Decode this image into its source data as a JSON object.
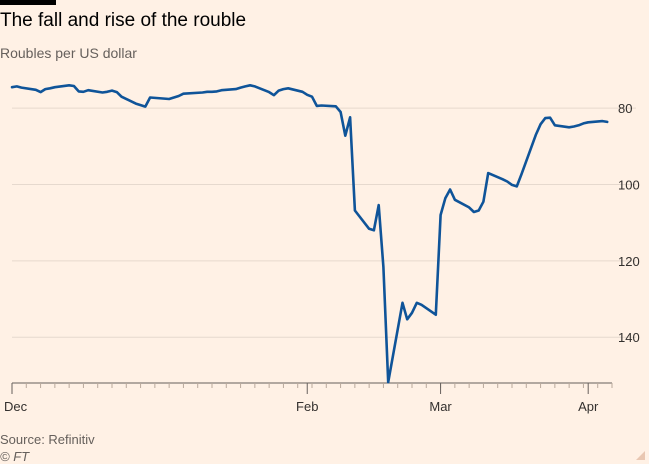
{
  "header": {
    "title": "The fall and rise of the rouble",
    "subtitle": "Roubles per US dollar"
  },
  "footer": {
    "source": "Source: Refinitiv",
    "copyright": "© FT"
  },
  "colors": {
    "background": "#fff1e5",
    "line": "#0f5499",
    "grid": "#e6d9ce",
    "axis": "#66605c",
    "text": "#33302e"
  },
  "chart_data": {
    "type": "line",
    "title": "The fall and rise of the rouble",
    "subtitle": "Roubles per US dollar",
    "xlabel": "",
    "ylabel": "",
    "y_inverted": true,
    "y_axis_side": "right",
    "ylim": [
      70,
      152
    ],
    "yticks": [
      80,
      100,
      120,
      140
    ],
    "xlim": [
      "2021-12-01",
      "2022-04-06"
    ],
    "xticks": [
      {
        "date": "2021-12-01",
        "label": "Dec"
      },
      {
        "date": "2022-02-01",
        "label": "Feb"
      },
      {
        "date": "2022-03-01",
        "label": "Mar"
      },
      {
        "date": "2022-04-01",
        "label": "Apr"
      }
    ],
    "grid": "horizontal",
    "series": [
      {
        "x": [
          "2021-12-01",
          "2021-12-02",
          "2021-12-03",
          "2021-12-06",
          "2021-12-07",
          "2021-12-08",
          "2021-12-09",
          "2021-12-10",
          "2021-12-13",
          "2021-12-14",
          "2021-12-15",
          "2021-12-16",
          "2021-12-17",
          "2021-12-20",
          "2021-12-21",
          "2021-12-22",
          "2021-12-23",
          "2021-12-24",
          "2021-12-27",
          "2021-12-28",
          "2021-12-29",
          "2021-12-30",
          "2022-01-03",
          "2022-01-05",
          "2022-01-06",
          "2022-01-10",
          "2022-01-11",
          "2022-01-12",
          "2022-01-13",
          "2022-01-14",
          "2022-01-17",
          "2022-01-18",
          "2022-01-19",
          "2022-01-20",
          "2022-01-21",
          "2022-01-24",
          "2022-01-25",
          "2022-01-26",
          "2022-01-27",
          "2022-01-28",
          "2022-01-31",
          "2022-02-01",
          "2022-02-02",
          "2022-02-03",
          "2022-02-04",
          "2022-02-07",
          "2022-02-08",
          "2022-02-09",
          "2022-02-10",
          "2022-02-11",
          "2022-02-14",
          "2022-02-15",
          "2022-02-16",
          "2022-02-17",
          "2022-02-18",
          "2022-02-21",
          "2022-02-22",
          "2022-02-23",
          "2022-02-24",
          "2022-02-25",
          "2022-02-28",
          "2022-03-01",
          "2022-03-02",
          "2022-03-03",
          "2022-03-04",
          "2022-03-07",
          "2022-03-08",
          "2022-03-09",
          "2022-03-10",
          "2022-03-11",
          "2022-03-14",
          "2022-03-15",
          "2022-03-16",
          "2022-03-17",
          "2022-03-18",
          "2022-03-21",
          "2022-03-22",
          "2022-03-23",
          "2022-03-24",
          "2022-03-25",
          "2022-03-28",
          "2022-03-29",
          "2022-03-30",
          "2022-03-31",
          "2022-04-01",
          "2022-04-04",
          "2022-04-05"
        ],
        "y": [
          74.5,
          74.3,
          74.6,
          75.2,
          75.8,
          75.0,
          74.8,
          74.5,
          74.0,
          74.2,
          75.6,
          75.7,
          75.3,
          75.9,
          75.7,
          75.4,
          75.8,
          77.0,
          78.8,
          79.2,
          79.6,
          77.2,
          77.6,
          76.8,
          76.2,
          75.9,
          75.7,
          75.7,
          75.6,
          75.3,
          75.0,
          74.6,
          74.3,
          74.0,
          74.3,
          75.8,
          76.6,
          75.4,
          75.0,
          74.8,
          75.7,
          76.5,
          77.0,
          79.4,
          79.3,
          79.5,
          81.0,
          87.2,
          82.4,
          106.8,
          111.6,
          112.0,
          105.4,
          121.6,
          151.8,
          131.0,
          135.3,
          133.6,
          131.0,
          131.5,
          134.1,
          108.0,
          103.6,
          101.3,
          104.0,
          106.0,
          107.2,
          106.8,
          104.5,
          97.0,
          98.6,
          99.2,
          100.1,
          100.5,
          97.3,
          87.0,
          84.2,
          82.6,
          82.5,
          84.5,
          85.0,
          84.8,
          84.5,
          84.0,
          83.7,
          83.4,
          83.6
        ]
      }
    ]
  }
}
